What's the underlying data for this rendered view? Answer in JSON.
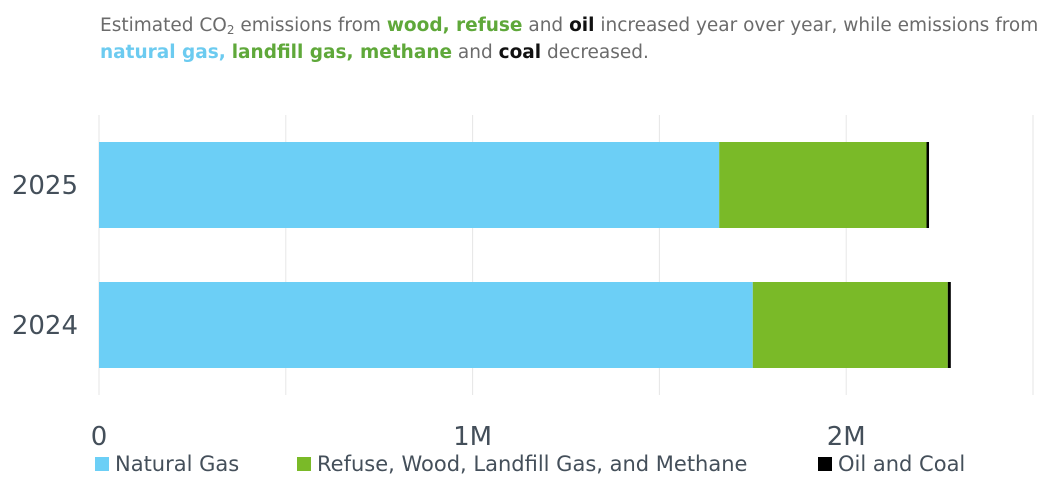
{
  "subtitle": {
    "p1": "Estimated CO",
    "p1_sub": "2",
    "p2": " emissions from ",
    "wood_refuse": "wood, refuse",
    "p3": " and ",
    "oil": "oil",
    "p4": " increased year over year, while emissions from ",
    "gas_group": "natural gas,",
    "p5": " ",
    "landfill_methane": "landfill gas, methane",
    "p6": " and ",
    "coal": "coal",
    "p7": " decreased."
  },
  "chart_data": {
    "type": "bar",
    "orientation": "horizontal",
    "stacked": true,
    "categories": [
      "2025",
      "2024"
    ],
    "series": [
      {
        "name": "Natural Gas",
        "color": "#6ccff6",
        "values": [
          1660000,
          1750000
        ]
      },
      {
        "name": "Refuse, Wood, Landfill Gas, and Methane",
        "color": "#7aba28",
        "values": [
          555000,
          522000
        ]
      },
      {
        "name": "Oil and Coal",
        "color": "#000000",
        "values": [
          5000,
          8000
        ]
      }
    ],
    "x_ticks": [
      {
        "value": 0,
        "label": "0"
      },
      {
        "value": 1000000,
        "label": "1M"
      },
      {
        "value": 2000000,
        "label": "2M"
      }
    ],
    "xlim": [
      0,
      2500000
    ],
    "grid": true,
    "legend_position": "bottom"
  }
}
